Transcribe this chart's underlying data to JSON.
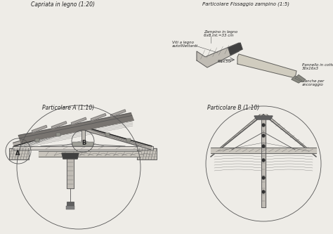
{
  "bg_color": "#eeece7",
  "line_color": "#555555",
  "line_color_dark": "#222222",
  "title1": "Capriata in legno (1:20)",
  "title2": "Particolare Fissaggio zampino (1:5)",
  "title3": "Particolare A (1:10)",
  "title4": "Particolare B (1:10)",
  "label_A": "A",
  "label_B": "B",
  "ann1": "Zanche per\nancoraggio",
  "ann2": "60x30",
  "ann3": "Viti a legno\nautofillettanti",
  "ann4": "Pannello in cotto\n30x16x3",
  "ann5": "Zampino in legno\n6x8 int.=33 cm",
  "font_family": "DejaVu Sans"
}
